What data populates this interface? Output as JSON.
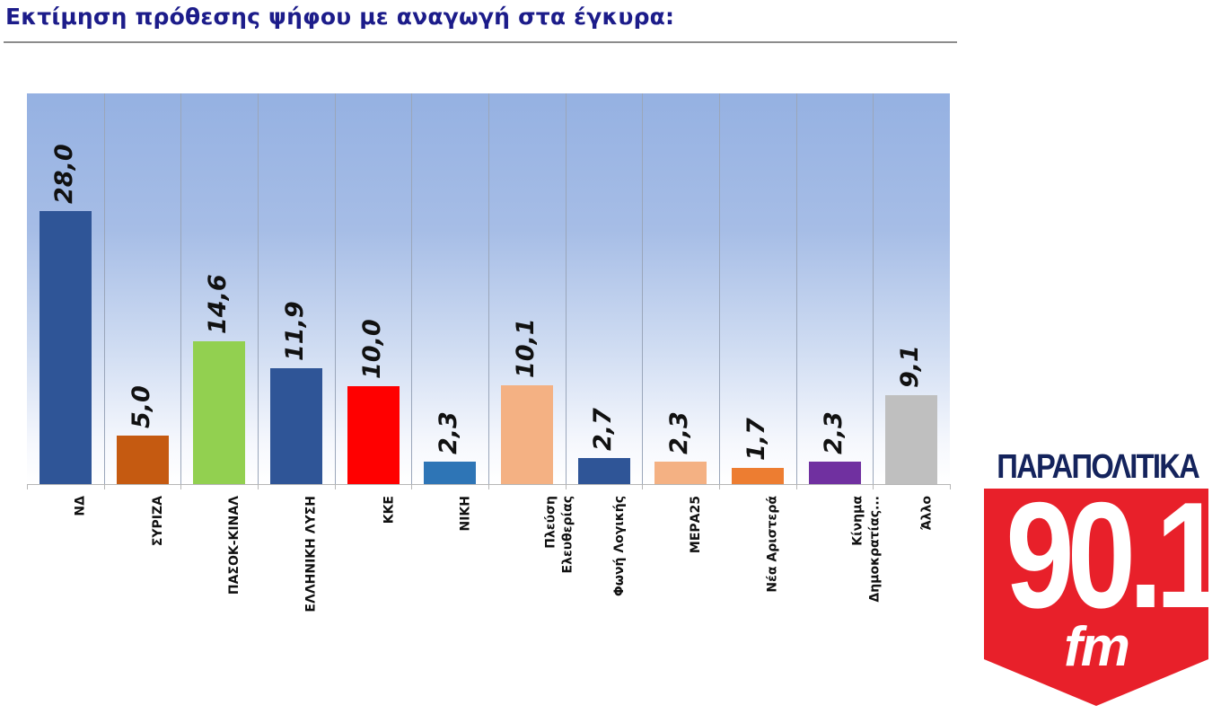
{
  "header": {
    "title": "Εκτίμηση πρόθεσης ψήφου με αναγωγή στα έγκυρα:"
  },
  "logo": {
    "wordmark": "ΠΑΡΑΠΟΛΙΤΙΚΑ",
    "frequency": "90.1",
    "band": "fm",
    "colors": {
      "red": "#e8202a",
      "navy": "#14235c"
    }
  },
  "chart_data": {
    "type": "bar",
    "title": "Εκτίμηση πρόθεσης ψήφου με αναγωγή στα έγκυρα:",
    "xlabel": "",
    "ylabel": "",
    "ylim": [
      0,
      40
    ],
    "grid": "vertical category separators",
    "legend": "none",
    "categories": [
      "ΝΔ",
      "ΣΥΡΙΖΑ",
      "ΠΑΣΟΚ-ΚΙΝΑΛ",
      "ΕΛΛΗΝΙΚΗ ΛΥΣΗ",
      "ΚΚΕ",
      "ΝΙΚΗ",
      "Πλεύση Ελευθερίας",
      "Φωνή Λογικής",
      "ΜΕΡΑ25",
      "Νέα Αριστερά",
      "Κίνημα Δημοκρατίας...",
      "Άλλο"
    ],
    "values": [
      28.0,
      5.0,
      14.6,
      11.9,
      10.0,
      2.3,
      10.1,
      2.7,
      2.3,
      1.7,
      2.3,
      9.1
    ],
    "value_labels": [
      "28,0",
      "5,0",
      "14,6",
      "11,9",
      "10,0",
      "2,3",
      "10,1",
      "2,7",
      "2,3",
      "1,7",
      "2,3",
      "9,1"
    ],
    "axis_labels": [
      "ΝΔ",
      "ΣΥΡΙΖΑ",
      "ΠΑΣΟΚ-ΚΙΝΑΛ",
      "ΕΛΛΗΝΙΚΗ ΛΥΣΗ",
      "ΚΚΕ",
      "ΝΙΚΗ",
      "Πλεύση\nΕλευθερίας",
      "Φωνή Λογικής",
      "ΜΕΡΑ25",
      "Νέα Αριστερά",
      "Κίνημα\nΔημοκρατίας...",
      "Άλλο"
    ],
    "colors": [
      "#2f5597",
      "#c55a11",
      "#92d050",
      "#2f5597",
      "#ff0000",
      "#2e75b6",
      "#f4b183",
      "#2f5597",
      "#f4b183",
      "#ed7d31",
      "#7030a0",
      "#bfbfbf"
    ]
  }
}
